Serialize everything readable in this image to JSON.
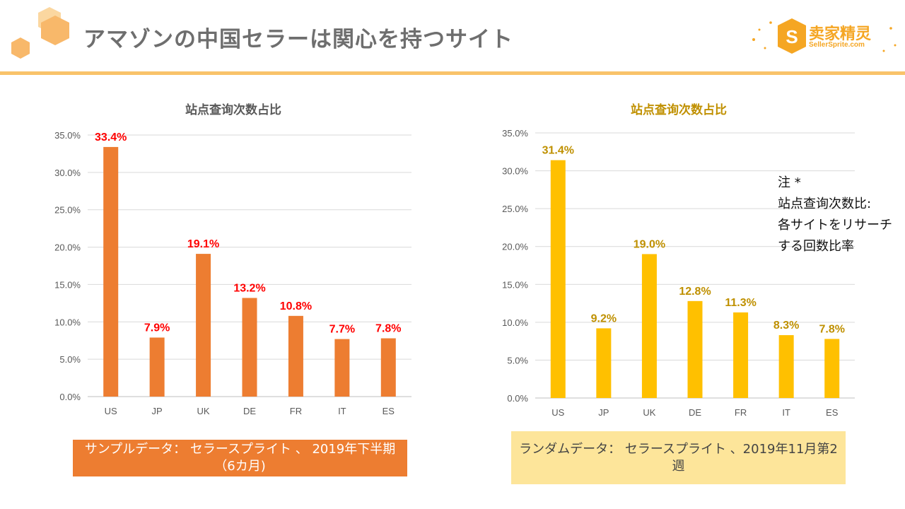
{
  "slide": {
    "title": "アマゾンの中国セラーは関心を持つサイト",
    "logo_cn": "卖家精灵",
    "logo_en": "SellerSprite.com"
  },
  "note": {
    "lines": [
      "注 *",
      "站点查询次数比:",
      "各サイトをリサーチ",
      "する回数比率"
    ]
  },
  "sources": {
    "left": "サンプルデータ： セラースプライト 、 2019年下半期（6カ月)",
    "right": "ランダムデータ： セラースプライト 、2019年11月第2週"
  },
  "colors": {
    "accent": "#f9c36a",
    "left_bar": "#ed7d31",
    "left_label": "#ff0000",
    "right_bar": "#ffc000",
    "right_label": "#bf9000",
    "right_title": "#c09000"
  },
  "chart_data": [
    {
      "type": "bar",
      "title": "站点查询次数占比",
      "categories": [
        "US",
        "JP",
        "UK",
        "DE",
        "FR",
        "IT",
        "ES"
      ],
      "values": [
        33.4,
        7.9,
        19.1,
        13.2,
        10.8,
        7.7,
        7.8
      ],
      "data_labels": [
        "33.4%",
        "7.9%",
        "19.1%",
        "13.2%",
        "10.8%",
        "7.7%",
        "7.8%"
      ],
      "ylim": [
        0,
        35
      ],
      "y_ticks": [
        "0.0%",
        "5.0%",
        "10.0%",
        "15.0%",
        "20.0%",
        "25.0%",
        "30.0%",
        "35.0%"
      ],
      "grid": true,
      "legend": "none"
    },
    {
      "type": "bar",
      "title": "站点查询次数占比",
      "categories": [
        "US",
        "JP",
        "UK",
        "DE",
        "FR",
        "IT",
        "ES"
      ],
      "values": [
        31.4,
        9.2,
        19.0,
        12.8,
        11.3,
        8.3,
        7.8
      ],
      "data_labels": [
        "31.4%",
        "9.2%",
        "19.0%",
        "12.8%",
        "11.3%",
        "8.3%",
        "7.8%"
      ],
      "ylim": [
        0,
        35
      ],
      "y_ticks": [
        "0.0%",
        "5.0%",
        "10.0%",
        "15.0%",
        "20.0%",
        "25.0%",
        "30.0%",
        "35.0%"
      ],
      "grid": true,
      "legend": "none"
    }
  ]
}
